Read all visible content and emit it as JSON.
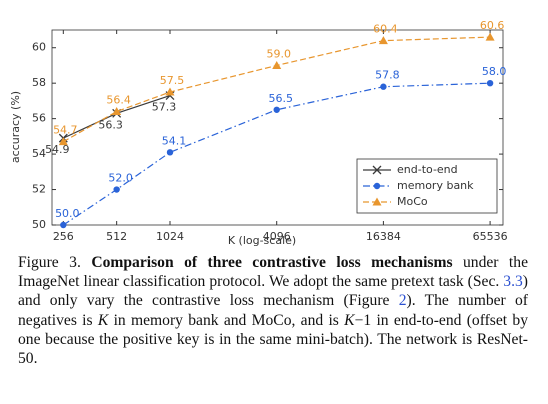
{
  "chart_data": {
    "type": "line",
    "xlabel": "K (log-scale)",
    "ylabel": "accuracy (%)",
    "xscale": "log",
    "xlim": [
      221,
      77500
    ],
    "ylim": [
      50,
      61
    ],
    "xticks": [
      256,
      512,
      1024,
      4096,
      16384,
      65536
    ],
    "yticks": [
      50,
      52,
      54,
      56,
      58,
      60
    ],
    "grid": false,
    "legend_position": "lower right",
    "series": [
      {
        "name": "end-to-end",
        "color": "#3a3a3a",
        "marker": "x",
        "dash": "solid",
        "x": [
          256,
          512,
          1024
        ],
        "values": [
          54.9,
          56.3,
          57.3
        ],
        "value_labels": [
          "54.9",
          "56.3",
          "57.3"
        ]
      },
      {
        "name": "memory bank",
        "color": "#2a63d8",
        "marker": "circle",
        "dash": "dashdot",
        "x": [
          256,
          512,
          1024,
          4096,
          16384,
          65536
        ],
        "values": [
          50.0,
          52.0,
          54.1,
          56.5,
          57.8,
          58.0
        ],
        "value_labels": [
          "50.0",
          "52.0",
          "54.1",
          "56.5",
          "57.8",
          "58.0"
        ]
      },
      {
        "name": "MoCo",
        "color": "#e8962e",
        "marker": "triangle",
        "dash": "dashed",
        "x": [
          256,
          512,
          1024,
          4096,
          16384,
          65536
        ],
        "values": [
          54.7,
          56.4,
          57.5,
          59.0,
          60.4,
          60.6
        ],
        "value_labels": [
          "54.7",
          "56.4",
          "57.5",
          "59.0",
          "60.4",
          "60.6"
        ]
      }
    ]
  },
  "caption": {
    "segments": [
      "Figure 3.",
      "Comparison of three contrastive loss mechanisms",
      " under the ImageNet linear classification protocol. We adopt the same pretext task (Sec. ",
      "3.3",
      ") and only vary the contrastive loss mechanism (Figure ",
      "2",
      "). The number of negatives is ",
      "K",
      " in memory bank and MoCo, and is ",
      "K",
      "−1 in end-to-end (offset by one because the positive key is in the same mini-batch). The network is ResNet-50."
    ]
  }
}
